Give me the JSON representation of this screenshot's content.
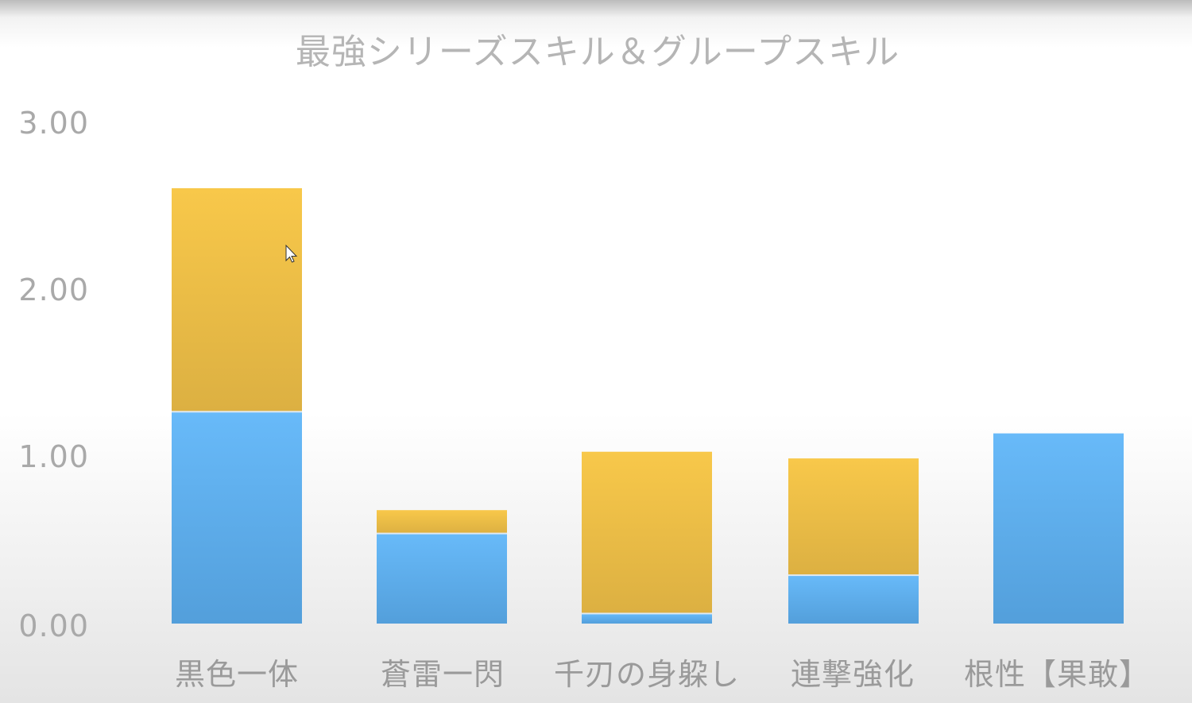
{
  "chart_data": {
    "type": "bar",
    "stacked": true,
    "title": "最強シリーズスキル＆グループスキル",
    "xlabel": "",
    "ylabel": "",
    "categories": [
      "黒色一体",
      "蒼雷一閃",
      "千刃の身躱し",
      "連撃強化",
      "根性【果敢】"
    ],
    "series": [
      {
        "values": [
          1.27,
          0.54,
          0.06,
          0.29,
          1.14
        ],
        "color": "#5aa9e6"
      },
      {
        "values": [
          1.34,
          0.14,
          0.97,
          0.7,
          0.0
        ],
        "color": "#f2c24a"
      }
    ],
    "y_ticks": [
      "0.00",
      "1.00",
      "2.00",
      "3.00"
    ],
    "ylim": [
      0,
      3
    ],
    "grid": false,
    "legend": "none"
  }
}
